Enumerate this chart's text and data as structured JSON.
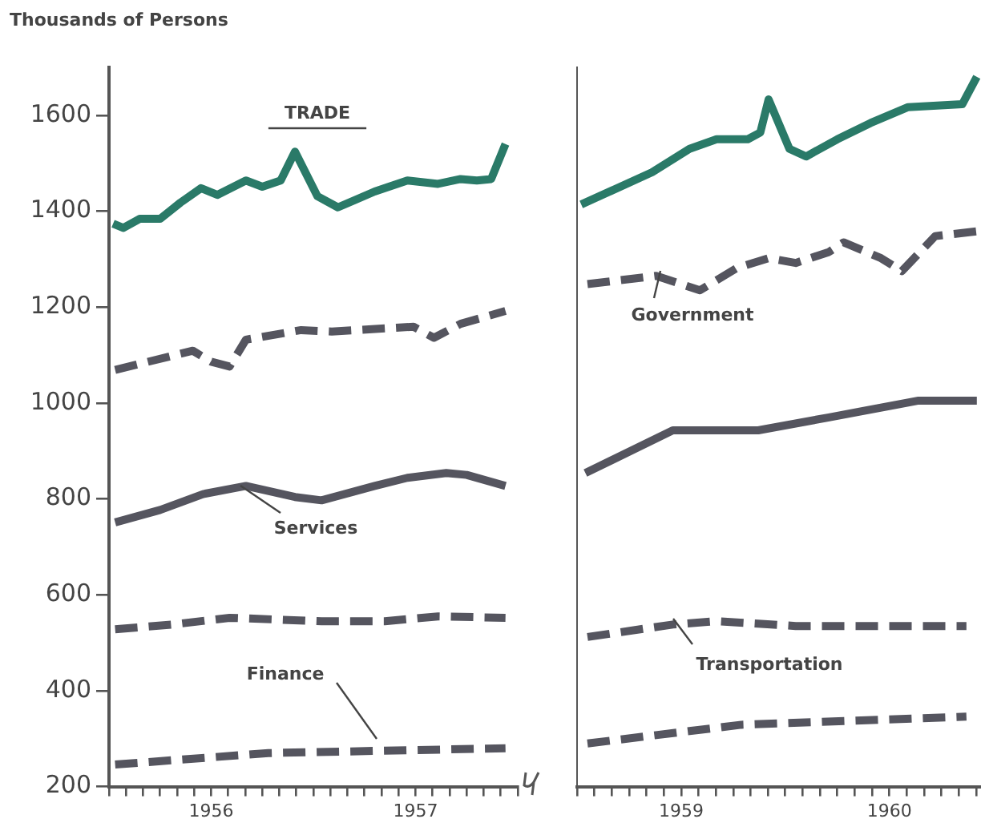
{
  "chart_data": [
    {
      "type": "line",
      "ylabel": "Thousands of Persons",
      "xlim": [
        1956,
        1958
      ],
      "ylim": [
        200,
        1700
      ],
      "yticks": [
        200,
        400,
        600,
        800,
        1000,
        1200,
        1400,
        1600
      ],
      "xticks": [
        {
          "value": 1956,
          "label": null
        },
        {
          "value": 1956.0833,
          "label": null
        },
        {
          "value": 1956.1667,
          "label": null
        },
        {
          "value": 1956.25,
          "label": null
        },
        {
          "value": 1956.3333,
          "label": null
        },
        {
          "value": 1956.4167,
          "label": null
        },
        {
          "value": 1956.5,
          "label": "1956"
        },
        {
          "value": 1956.5833,
          "label": null
        },
        {
          "value": 1956.6667,
          "label": null
        },
        {
          "value": 1956.75,
          "label": null
        },
        {
          "value": 1956.8333,
          "label": null
        },
        {
          "value": 1956.9167,
          "label": null
        },
        {
          "value": 1957,
          "label": null
        },
        {
          "value": 1957.0833,
          "label": null
        },
        {
          "value": 1957.1667,
          "label": null
        },
        {
          "value": 1957.25,
          "label": null
        },
        {
          "value": 1957.3333,
          "label": null
        },
        {
          "value": 1957.4167,
          "label": null
        },
        {
          "value": 1957.5,
          "label": "1957"
        },
        {
          "value": 1957.5833,
          "label": null
        },
        {
          "value": 1957.6667,
          "label": null
        },
        {
          "value": 1957.75,
          "label": null
        },
        {
          "value": 1957.8333,
          "label": null
        },
        {
          "value": 1957.9167,
          "label": null
        },
        {
          "value": 1958,
          "label": null
        }
      ],
      "marker": "none",
      "series": [
        {
          "name": "TRADE",
          "color": "#2a7a68",
          "line_style": "solid",
          "x": [
            1956.02,
            1956.07,
            1956.15,
            1956.25,
            1956.35,
            1956.45,
            1956.53,
            1956.67,
            1956.75,
            1956.84,
            1956.91,
            1957.02,
            1957.12,
            1957.3,
            1957.46,
            1957.61,
            1957.72,
            1957.8,
            1957.87,
            1957.94
          ],
          "values": [
            1374,
            1365,
            1384,
            1384,
            1418,
            1448,
            1434,
            1464,
            1451,
            1464,
            1524,
            1431,
            1408,
            1441,
            1464,
            1457,
            1467,
            1464,
            1467,
            1540
          ]
        },
        {
          "color": "#55555f",
          "line_style": "dashed",
          "x": [
            1956.03,
            1956.41,
            1956.5,
            1956.59,
            1956.67,
            1956.94,
            1957.09,
            1957.49,
            1957.59,
            1957.72,
            1957.94
          ],
          "values": [
            1069,
            1109,
            1086,
            1076,
            1132,
            1152,
            1149,
            1159,
            1136,
            1165,
            1192
          ]
        },
        {
          "name": "Services",
          "color": "#55555f",
          "line_style": "solid",
          "x": [
            1956.03,
            1956.25,
            1956.46,
            1956.67,
            1956.91,
            1957.04,
            1957.3,
            1957.46,
            1957.65,
            1957.75,
            1957.94
          ],
          "values": [
            751,
            777,
            810,
            827,
            804,
            797,
            827,
            844,
            854,
            850,
            827
          ]
        },
        {
          "color": "#55555f",
          "line_style": "dashed",
          "x": [
            1956.03,
            1956.31,
            1956.59,
            1957.04,
            1957.35,
            1957.61,
            1957.94
          ],
          "values": [
            528,
            538,
            552,
            545,
            545,
            555,
            552
          ]
        },
        {
          "name": "Finance",
          "color": "#55555f",
          "line_style": "dashed",
          "x": [
            1956.03,
            1956.78,
            1957.94
          ],
          "values": [
            246,
            270,
            280
          ]
        }
      ]
    },
    {
      "type": "line",
      "tick_labels": "x",
      "xlim": [
        1959,
        1960.94
      ],
      "ylim": [
        200,
        1700
      ],
      "yticks": [
        200,
        400,
        600,
        800,
        1000,
        1200,
        1400,
        1600
      ],
      "xticks": [
        {
          "value": 1959,
          "label": null
        },
        {
          "value": 1959.0833,
          "label": null
        },
        {
          "value": 1959.1667,
          "label": null
        },
        {
          "value": 1959.25,
          "label": null
        },
        {
          "value": 1959.3333,
          "label": null
        },
        {
          "value": 1959.4167,
          "label": null
        },
        {
          "value": 1959.5,
          "label": "1959"
        },
        {
          "value": 1959.5833,
          "label": null
        },
        {
          "value": 1959.6667,
          "label": null
        },
        {
          "value": 1959.75,
          "label": null
        },
        {
          "value": 1959.8333,
          "label": null
        },
        {
          "value": 1959.9167,
          "label": null
        },
        {
          "value": 1960,
          "label": null
        },
        {
          "value": 1960.0833,
          "label": null
        },
        {
          "value": 1960.1667,
          "label": null
        },
        {
          "value": 1960.25,
          "label": null
        },
        {
          "value": 1960.3333,
          "label": null
        },
        {
          "value": 1960.4167,
          "label": null
        },
        {
          "value": 1960.5,
          "label": "1960"
        },
        {
          "value": 1960.5833,
          "label": null
        },
        {
          "value": 1960.6667,
          "label": null
        },
        {
          "value": 1960.75,
          "label": null
        },
        {
          "value": 1960.8333,
          "label": null
        },
        {
          "value": 1960.9167,
          "label": null
        }
      ],
      "marker": "none",
      "series": [
        {
          "color": "#2a7a68",
          "line_style": "solid",
          "x": [
            1959.02,
            1959.36,
            1959.54,
            1959.67,
            1959.82,
            1959.88,
            1959.92,
            1960.02,
            1960.1,
            1960.25,
            1960.41,
            1960.59,
            1960.85,
            1960.92
          ],
          "values": [
            1414,
            1481,
            1530,
            1550,
            1550,
            1564,
            1633,
            1530,
            1514,
            1550,
            1584,
            1617,
            1623,
            1680
          ]
        },
        {
          "name": "Government",
          "color": "#55555f",
          "line_style": "dashed",
          "x": [
            1959.05,
            1959.38,
            1959.59,
            1959.77,
            1959.92,
            1960.05,
            1960.21,
            1960.28,
            1960.46,
            1960.56,
            1960.72,
            1960.92
          ],
          "values": [
            1248,
            1265,
            1235,
            1282,
            1302,
            1292,
            1315,
            1335,
            1302,
            1275,
            1348,
            1358
          ]
        },
        {
          "color": "#55555f",
          "line_style": "solid",
          "x": [
            1959.04,
            1959.46,
            1959.87,
            1960.21,
            1960.64,
            1960.92
          ],
          "values": [
            854,
            943,
            943,
            970,
            1005,
            1005
          ]
        },
        {
          "name": "Transportation",
          "color": "#55555f",
          "line_style": "dashed",
          "x": [
            1959.05,
            1959.46,
            1959.67,
            1960.05,
            1960.87
          ],
          "values": [
            512,
            538,
            545,
            535,
            535
          ]
        },
        {
          "color": "#55555f",
          "line_style": "dashed",
          "x": [
            1959.05,
            1959.79,
            1960.87
          ],
          "values": [
            290,
            329,
            346
          ]
        }
      ]
    }
  ]
}
